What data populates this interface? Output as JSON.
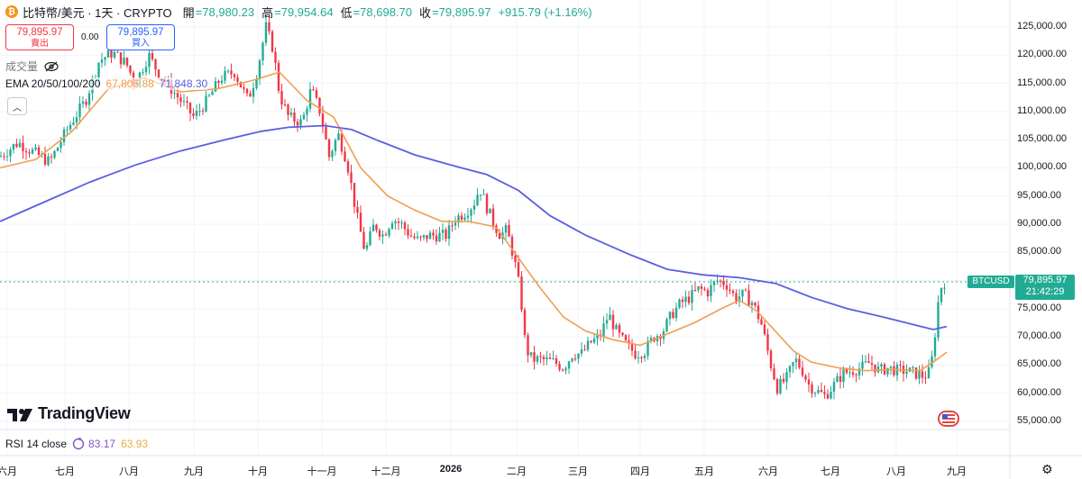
{
  "header": {
    "symbol": "比特幣/美元 · 1天 · CRYPTO",
    "open_label": "開",
    "open": "=78,980.23",
    "high_label": "高",
    "high": "=79,954.64",
    "low_label": "低",
    "low": "=78,698.70",
    "close_label": "收",
    "close": "=79,895.97",
    "change": "+915.79 (+1.16%)"
  },
  "trade": {
    "sell_price": "79,895.97",
    "sell_label": "賣出",
    "spread": "0.00",
    "buy_price": "79,895.97",
    "buy_label": "買入"
  },
  "volume_label": "成交量",
  "ema": {
    "name": "EMA 20/50/100/200",
    "v1": "67,806.88",
    "v2": "71,848.30"
  },
  "rsi": {
    "name": "RSI 14 close",
    "v1": "83.17",
    "v2": "63.93"
  },
  "logo_text": "TradingView",
  "price_axis": [
    "125,000.00",
    "120,000.00",
    "115,000.00",
    "110,000.00",
    "105,000.00",
    "100,000.00",
    "95,000.00",
    "90,000.00",
    "85,000.00",
    "80,000.00",
    "75,000.00",
    "70,000.00",
    "65,000.00",
    "60,000.00",
    "55,000.00"
  ],
  "time_axis": [
    "六月",
    "七月",
    "八月",
    "九月",
    "十月",
    "十一月",
    "十二月",
    "2026",
    "二月",
    "三月",
    "四月",
    "五月",
    "六月",
    "七月",
    "八月",
    "九月"
  ],
  "last_price_tag": {
    "symbol": "BTCUSD",
    "price": "79,895.97",
    "countdown": "21:42:29"
  },
  "colors": {
    "up": "#22ab94",
    "down": "#f23645",
    "ema_fast": "#f19e4f",
    "ema_slow": "#5b5fe0",
    "rsi": "#7e57c2",
    "rsi_ma": "#e3b341"
  },
  "chart_data": {
    "type": "candlestick",
    "ylim": [
      55000,
      127000
    ],
    "series_path_points": [
      [
        0,
        102000
      ],
      [
        20,
        104500
      ],
      [
        40,
        102500
      ],
      [
        55,
        101000
      ],
      [
        75,
        107000
      ],
      [
        95,
        112000
      ],
      [
        110,
        119000
      ],
      [
        125,
        120500
      ],
      [
        140,
        118500
      ],
      [
        150,
        115000
      ],
      [
        165,
        120000
      ],
      [
        175,
        117000
      ],
      [
        190,
        114000
      ],
      [
        205,
        111000
      ],
      [
        215,
        109000
      ],
      [
        230,
        112000
      ],
      [
        245,
        116000
      ],
      [
        260,
        117000
      ],
      [
        275,
        112000
      ],
      [
        285,
        117000
      ],
      [
        295,
        125000
      ],
      [
        303,
        121000
      ],
      [
        310,
        113000
      ],
      [
        320,
        109000
      ],
      [
        335,
        108000
      ],
      [
        345,
        114000
      ],
      [
        355,
        110000
      ],
      [
        365,
        102000
      ],
      [
        375,
        106000
      ],
      [
        385,
        101000
      ],
      [
        395,
        92000
      ],
      [
        405,
        85000
      ],
      [
        415,
        90000
      ],
      [
        425,
        88000
      ],
      [
        435,
        91000
      ],
      [
        445,
        90000
      ],
      [
        455,
        88000
      ],
      [
        465,
        87000
      ],
      [
        475,
        88000
      ],
      [
        485,
        88000
      ],
      [
        495,
        88000
      ],
      [
        505,
        91000
      ],
      [
        515,
        92000
      ],
      [
        525,
        93500
      ],
      [
        532,
        96500
      ],
      [
        540,
        93000
      ],
      [
        548,
        90000
      ],
      [
        555,
        88000
      ],
      [
        562,
        89000
      ],
      [
        570,
        84000
      ],
      [
        577,
        78000
      ],
      [
        583,
        68000
      ],
      [
        590,
        66000
      ],
      [
        600,
        66000
      ],
      [
        615,
        65500
      ],
      [
        625,
        64500
      ],
      [
        635,
        67000
      ],
      [
        645,
        67000
      ],
      [
        655,
        69000
      ],
      [
        665,
        70000
      ],
      [
        675,
        74000
      ],
      [
        685,
        70500
      ],
      [
        695,
        68500
      ],
      [
        705,
        67000
      ],
      [
        715,
        67500
      ],
      [
        725,
        70000
      ],
      [
        735,
        71000
      ],
      [
        745,
        74000
      ],
      [
        755,
        76000
      ],
      [
        765,
        77000
      ],
      [
        775,
        78500
      ],
      [
        785,
        78000
      ],
      [
        795,
        80000
      ],
      [
        805,
        79500
      ],
      [
        815,
        77000
      ],
      [
        825,
        77500
      ],
      [
        835,
        76000
      ],
      [
        845,
        72000
      ],
      [
        855,
        65000
      ],
      [
        862,
        61000
      ],
      [
        872,
        62500
      ],
      [
        882,
        66000
      ],
      [
        890,
        64000
      ],
      [
        897,
        61500
      ],
      [
        905,
        60500
      ],
      [
        915,
        59500
      ],
      [
        925,
        61500
      ],
      [
        935,
        63500
      ],
      [
        945,
        64000
      ],
      [
        955,
        64500
      ],
      [
        965,
        65500
      ],
      [
        975,
        64000
      ],
      [
        985,
        64500
      ],
      [
        995,
        64000
      ],
      [
        1005,
        64000
      ],
      [
        1015,
        63500
      ],
      [
        1025,
        63000
      ],
      [
        1032,
        64000
      ],
      [
        1038,
        72000
      ],
      [
        1042,
        78500
      ],
      [
        1048,
        79895
      ]
    ],
    "ema_fast_points": [
      [
        0,
        100000
      ],
      [
        40,
        101500
      ],
      [
        80,
        106500
      ],
      [
        120,
        114000
      ],
      [
        160,
        116000
      ],
      [
        200,
        113500
      ],
      [
        240,
        114000
      ],
      [
        280,
        115500
      ],
      [
        310,
        117000
      ],
      [
        340,
        112000
      ],
      [
        370,
        109000
      ],
      [
        400,
        100000
      ],
      [
        430,
        95000
      ],
      [
        460,
        92500
      ],
      [
        490,
        90500
      ],
      [
        520,
        90500
      ],
      [
        550,
        89500
      ],
      [
        575,
        84000
      ],
      [
        600,
        78500
      ],
      [
        625,
        73500
      ],
      [
        650,
        71000
      ],
      [
        680,
        69500
      ],
      [
        710,
        68500
      ],
      [
        740,
        70500
      ],
      [
        770,
        72500
      ],
      [
        800,
        75000
      ],
      [
        820,
        76500
      ],
      [
        840,
        74500
      ],
      [
        860,
        71000
      ],
      [
        880,
        67500
      ],
      [
        900,
        65500
      ],
      [
        930,
        64500
      ],
      [
        960,
        64000
      ],
      [
        990,
        64200
      ],
      [
        1020,
        64000
      ],
      [
        1035,
        65500
      ],
      [
        1050,
        67300
      ]
    ],
    "ema_slow_points": [
      [
        0,
        90500
      ],
      [
        50,
        94000
      ],
      [
        100,
        97500
      ],
      [
        150,
        100500
      ],
      [
        200,
        103000
      ],
      [
        250,
        105000
      ],
      [
        290,
        106500
      ],
      [
        320,
        107200
      ],
      [
        360,
        107500
      ],
      [
        390,
        106800
      ],
      [
        420,
        104800
      ],
      [
        460,
        102300
      ],
      [
        500,
        100500
      ],
      [
        540,
        98800
      ],
      [
        575,
        96000
      ],
      [
        610,
        91500
      ],
      [
        650,
        88000
      ],
      [
        700,
        84500
      ],
      [
        740,
        82000
      ],
      [
        780,
        81000
      ],
      [
        820,
        80500
      ],
      [
        860,
        79500
      ],
      [
        900,
        77000
      ],
      [
        940,
        75000
      ],
      [
        980,
        73500
      ],
      [
        1010,
        72300
      ],
      [
        1035,
        71300
      ],
      [
        1050,
        71848
      ]
    ]
  }
}
